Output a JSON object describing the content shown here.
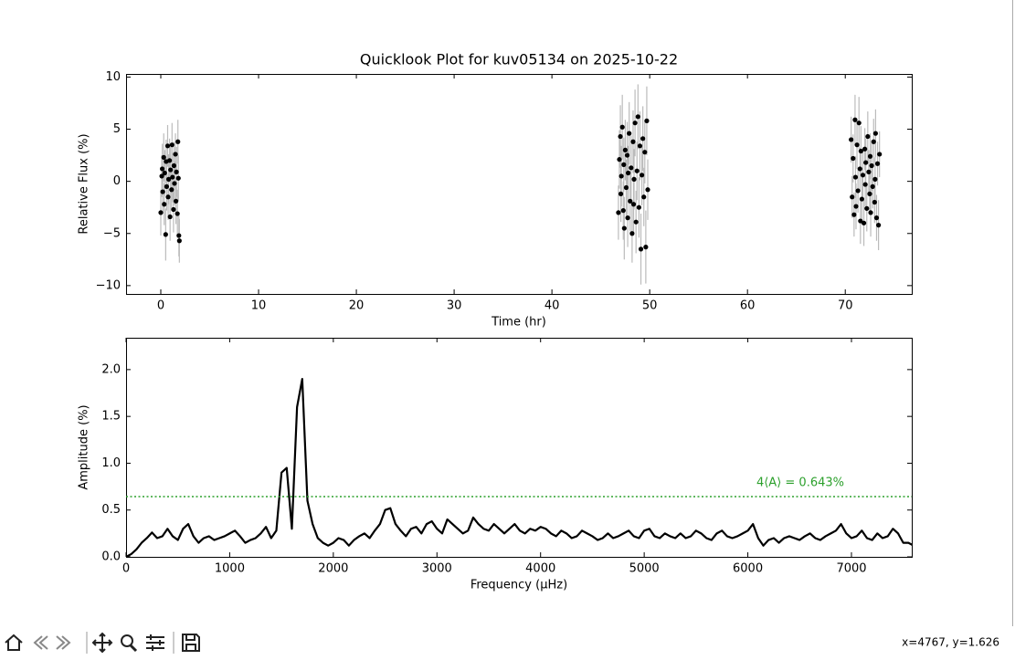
{
  "chart_data": [
    {
      "type": "scatter",
      "title": "Quicklook Plot for kuv05134 on 2025-10-22",
      "xlabel": "Time (hr)",
      "ylabel": "Relative Flux (%)",
      "xlim": [
        -3.55,
        76.8
      ],
      "ylim": [
        -10.8,
        10.3
      ],
      "xticks": [
        0,
        10,
        20,
        30,
        40,
        50,
        60,
        70
      ],
      "yticks": [
        {
          "value": -10,
          "label": "−10"
        },
        {
          "value": -5,
          "label": "−5"
        },
        0,
        5,
        10
      ],
      "series": [
        {
          "color": "#000000",
          "error_color": "#bbbbbb",
          "x": [
            0.0,
            0.1,
            0.15,
            0.2,
            0.3,
            0.35,
            0.4,
            0.5,
            0.55,
            0.6,
            0.7,
            0.75,
            0.8,
            0.9,
            0.95,
            1.0,
            1.1,
            1.15,
            1.2,
            1.3,
            1.35,
            1.4,
            1.5,
            1.55,
            1.6,
            1.7,
            1.75,
            1.8,
            1.85,
            1.9,
            46.8,
            46.9,
            47.0,
            47.05,
            47.1,
            47.2,
            47.3,
            47.35,
            47.4,
            47.5,
            47.6,
            47.7,
            47.75,
            47.8,
            47.9,
            48.0,
            48.1,
            48.2,
            48.3,
            48.35,
            48.4,
            48.5,
            48.6,
            48.7,
            48.8,
            48.9,
            49.0,
            49.1,
            49.2,
            49.3,
            49.4,
            49.5,
            49.6,
            49.7,
            49.8,
            70.6,
            70.7,
            70.8,
            70.9,
            71.0,
            71.05,
            71.1,
            71.2,
            71.3,
            71.4,
            71.5,
            71.55,
            71.6,
            71.7,
            71.8,
            71.9,
            72.0,
            72.05,
            72.1,
            72.2,
            72.3,
            72.4,
            72.5,
            72.55,
            72.6,
            72.7,
            72.8,
            72.9,
            73.0,
            73.05,
            73.1,
            73.2,
            73.3,
            73.4,
            73.5
          ],
          "values": [
            -3.0,
            0.5,
            1.2,
            -1.0,
            2.3,
            -2.2,
            0.8,
            -5.1,
            1.9,
            -0.5,
            3.4,
            -1.5,
            0.2,
            2.0,
            -3.4,
            1.1,
            -0.8,
            3.5,
            0.4,
            -2.7,
            1.5,
            -0.2,
            2.6,
            -1.9,
            0.9,
            -3.1,
            3.8,
            0.3,
            -5.2,
            -5.7,
            -3.0,
            2.1,
            4.3,
            -1.2,
            0.5,
            5.2,
            -2.8,
            1.6,
            -4.5,
            3.0,
            -0.6,
            2.5,
            -3.5,
            0.8,
            4.6,
            -1.9,
            1.3,
            -5.0,
            3.8,
            -2.2,
            0.2,
            5.6,
            -3.9,
            1.0,
            6.2,
            -2.5,
            3.4,
            -6.5,
            0.6,
            4.1,
            -1.5,
            2.8,
            -6.3,
            5.8,
            -0.8,
            4.0,
            -1.5,
            2.2,
            -3.2,
            5.9,
            0.4,
            -2.4,
            3.5,
            -0.9,
            5.6,
            1.2,
            -3.8,
            2.9,
            -1.7,
            0.6,
            -4.0,
            3.1,
            -0.3,
            1.8,
            -2.6,
            4.3,
            0.9,
            -1.2,
            2.4,
            -3.0,
            1.5,
            -0.5,
            3.8,
            -2.0,
            0.2,
            4.6,
            -3.5,
            1.7,
            -4.2,
            2.6
          ],
          "errors": [
            2.2,
            2.0,
            2.4,
            2.1,
            2.3,
            2.0,
            2.2,
            2.5,
            2.1,
            2.3,
            2.0,
            2.2,
            2.4,
            2.1,
            2.3,
            2.2,
            2.0,
            2.1,
            2.4,
            2.2,
            2.3,
            2.1,
            2.0,
            2.2,
            2.4,
            2.3,
            2.1,
            2.2,
            2.0,
            2.1,
            2.6,
            2.8,
            3.0,
            2.7,
            2.9,
            3.1,
            2.8,
            2.6,
            3.0,
            2.9,
            2.7,
            3.2,
            2.8,
            2.6,
            3.0,
            2.9,
            3.1,
            2.8,
            3.0,
            2.7,
            2.9,
            3.2,
            3.0,
            2.8,
            3.1,
            2.9,
            3.3,
            3.4,
            2.9,
            3.1,
            2.8,
            3.0,
            3.5,
            3.3,
            2.9,
            2.2,
            2.0,
            2.3,
            2.1,
            2.4,
            2.0,
            2.2,
            2.3,
            2.1,
            2.5,
            2.0,
            2.2,
            2.4,
            2.1,
            2.3,
            2.2,
            2.0,
            2.1,
            2.3,
            2.2,
            2.4,
            2.1,
            2.0,
            2.2,
            2.3,
            2.4,
            2.1,
            2.2,
            2.0,
            2.1,
            2.3,
            2.2,
            2.1,
            2.4,
            2.2
          ]
        }
      ]
    },
    {
      "type": "line",
      "xlabel": "Frequency (μHz)",
      "ylabel": "Amplitude (%)",
      "xlim": [
        0,
        7582
      ],
      "ylim": [
        0,
        2.34
      ],
      "xticks": [
        0,
        1000,
        2000,
        3000,
        4000,
        5000,
        6000,
        7000
      ],
      "yticks": [
        {
          "value": 0,
          "label": "0.0"
        },
        0.5,
        {
          "value": 1,
          "label": "1.0"
        },
        1.5,
        {
          "value": 2,
          "label": "2.0"
        }
      ],
      "hline": {
        "value": 0.643,
        "color": "#2ca02c",
        "label": "4⟨A⟩ = 0.643%"
      },
      "series": [
        {
          "color": "#000000",
          "x": [
            0,
            50,
            100,
            150,
            200,
            250,
            300,
            350,
            400,
            450,
            500,
            550,
            600,
            650,
            700,
            750,
            800,
            850,
            900,
            950,
            1000,
            1050,
            1100,
            1150,
            1200,
            1250,
            1300,
            1350,
            1400,
            1450,
            1500,
            1550,
            1600,
            1650,
            1700,
            1750,
            1800,
            1850,
            1900,
            1950,
            2000,
            2050,
            2100,
            2150,
            2200,
            2250,
            2300,
            2350,
            2400,
            2450,
            2500,
            2550,
            2600,
            2650,
            2700,
            2750,
            2800,
            2850,
            2900,
            2950,
            3000,
            3050,
            3100,
            3150,
            3200,
            3250,
            3300,
            3350,
            3400,
            3450,
            3500,
            3550,
            3600,
            3650,
            3700,
            3750,
            3800,
            3850,
            3900,
            3950,
            4000,
            4050,
            4100,
            4150,
            4200,
            4250,
            4300,
            4350,
            4400,
            4450,
            4500,
            4550,
            4600,
            4650,
            4700,
            4750,
            4800,
            4850,
            4900,
            4950,
            5000,
            5050,
            5100,
            5150,
            5200,
            5250,
            5300,
            5350,
            5400,
            5450,
            5500,
            5550,
            5600,
            5650,
            5700,
            5750,
            5800,
            5850,
            5900,
            5950,
            6000,
            6050,
            6100,
            6150,
            6200,
            6250,
            6300,
            6350,
            6400,
            6450,
            6500,
            6550,
            6600,
            6650,
            6700,
            6750,
            6800,
            6850,
            6900,
            6950,
            7000,
            7050,
            7100,
            7150,
            7200,
            7250,
            7300,
            7350,
            7400,
            7450,
            7500,
            7550,
            7600
          ],
          "values": [
            0,
            0.03,
            0.08,
            0.15,
            0.2,
            0.26,
            0.2,
            0.22,
            0.3,
            0.22,
            0.18,
            0.3,
            0.35,
            0.22,
            0.15,
            0.2,
            0.22,
            0.18,
            0.2,
            0.22,
            0.25,
            0.28,
            0.22,
            0.15,
            0.18,
            0.2,
            0.25,
            0.32,
            0.2,
            0.28,
            0.9,
            0.95,
            0.3,
            1.6,
            1.9,
            0.6,
            0.35,
            0.2,
            0.15,
            0.12,
            0.15,
            0.2,
            0.18,
            0.12,
            0.18,
            0.22,
            0.25,
            0.2,
            0.28,
            0.35,
            0.5,
            0.52,
            0.35,
            0.28,
            0.22,
            0.3,
            0.32,
            0.25,
            0.35,
            0.38,
            0.3,
            0.25,
            0.4,
            0.35,
            0.3,
            0.25,
            0.28,
            0.42,
            0.35,
            0.3,
            0.28,
            0.35,
            0.3,
            0.25,
            0.3,
            0.35,
            0.28,
            0.25,
            0.3,
            0.28,
            0.32,
            0.3,
            0.25,
            0.22,
            0.28,
            0.25,
            0.2,
            0.22,
            0.28,
            0.25,
            0.22,
            0.18,
            0.2,
            0.25,
            0.2,
            0.22,
            0.25,
            0.28,
            0.22,
            0.2,
            0.28,
            0.3,
            0.22,
            0.2,
            0.25,
            0.22,
            0.2,
            0.25,
            0.2,
            0.22,
            0.28,
            0.25,
            0.2,
            0.18,
            0.25,
            0.28,
            0.22,
            0.2,
            0.22,
            0.25,
            0.28,
            0.35,
            0.2,
            0.12,
            0.18,
            0.2,
            0.15,
            0.2,
            0.22,
            0.2,
            0.18,
            0.22,
            0.25,
            0.2,
            0.18,
            0.22,
            0.25,
            0.28,
            0.35,
            0.25,
            0.2,
            0.22,
            0.28,
            0.2,
            0.18,
            0.25,
            0.2,
            0.22,
            0.3,
            0.25,
            0.15,
            0.15,
            0.12
          ]
        }
      ]
    }
  ],
  "toolbar": {
    "status": "x=4767, y=1.626"
  }
}
